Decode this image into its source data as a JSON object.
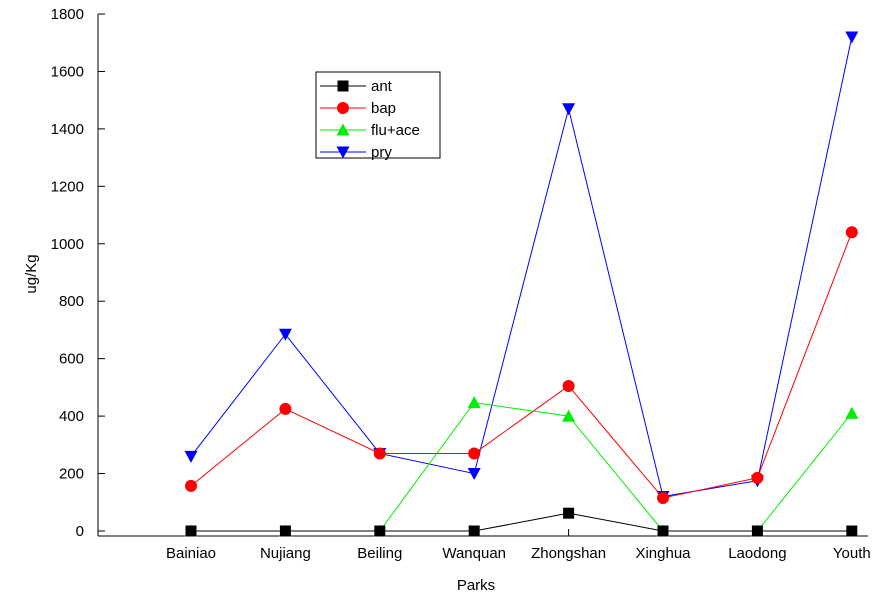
{
  "chart_data": {
    "type": "line",
    "xlabel": "Parks",
    "ylabel": "ug/Kg",
    "ylim": [
      0,
      1800
    ],
    "yticks": [
      "0",
      "200",
      "400",
      "600",
      "800",
      "1000",
      "1200",
      "1400",
      "1600",
      "1800"
    ],
    "categories": [
      "Bainiao",
      "Nujiang",
      "Beiling",
      "Wanquan",
      "Zhongshan",
      "Xinghua",
      "Laodong",
      "Youth"
    ],
    "grid": false,
    "legend_position": "top-left-inside",
    "series": [
      {
        "name": "ant",
        "color": "#000000",
        "marker": "square",
        "values": [
          0,
          0,
          0,
          0,
          62,
          0,
          0,
          0
        ]
      },
      {
        "name": "bap",
        "color": "#ff0000",
        "marker": "circle",
        "values": [
          157,
          425,
          270,
          270,
          505,
          115,
          185,
          1040
        ]
      },
      {
        "name": "flu+ace",
        "color": "#00ee00",
        "marker": "triangle-up",
        "values": [
          0,
          0,
          0,
          447,
          400,
          0,
          0,
          410
        ]
      },
      {
        "name": "pry",
        "color": "#0000ff",
        "marker": "triangle-down",
        "values": [
          260,
          685,
          270,
          200,
          1470,
          120,
          175,
          1720
        ]
      }
    ]
  }
}
